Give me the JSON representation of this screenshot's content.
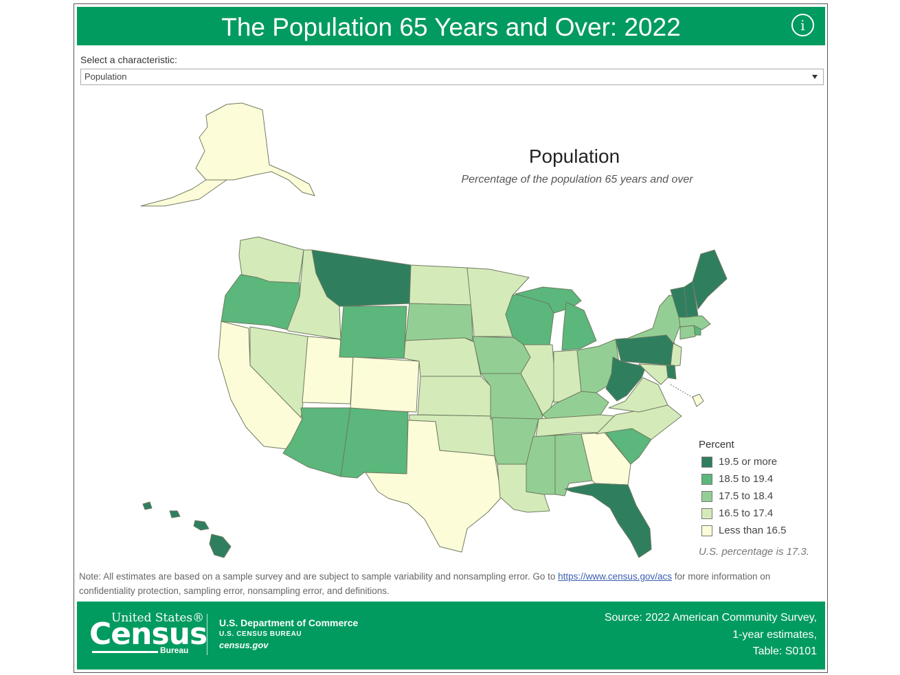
{
  "header": {
    "title": "The Population 65 Years and Over: 2022",
    "info_icon": "info-icon"
  },
  "selector": {
    "label": "Select a characteristic:",
    "value": "Population"
  },
  "map": {
    "title": "Population",
    "subtitle": "Percentage of the population 65 years and over",
    "state_classes": {
      "AK": 0,
      "HI": 4,
      "WA": 1,
      "OR": 3,
      "CA": 0,
      "ID": 1,
      "NV": 1,
      "UT": 0,
      "AZ": 3,
      "MT": 4,
      "WY": 3,
      "CO": 0,
      "NM": 3,
      "ND": 1,
      "SD": 2,
      "NE": 1,
      "KS": 1,
      "OK": 1,
      "TX": 0,
      "MN": 1,
      "IA": 2,
      "MO": 2,
      "AR": 2,
      "LA": 1,
      "WI": 3,
      "IL": 1,
      "MI": 3,
      "IN": 1,
      "OH": 2,
      "KY": 2,
      "TN": 1,
      "MS": 2,
      "AL": 2,
      "GA": 0,
      "FL": 4,
      "SC": 3,
      "NC": 1,
      "VA": 1,
      "WV": 4,
      "PA": 4,
      "NY": 2,
      "NJ": 1,
      "DE": 4,
      "MD": 1,
      "DC": 0,
      "CT": 2,
      "RI": 3,
      "MA": 2,
      "VT": 4,
      "NH": 4,
      "ME": 4
    }
  },
  "legend": {
    "title": "Percent",
    "items": [
      {
        "label": "19.5 or more",
        "color": "#2f7f5f"
      },
      {
        "label": "18.5 to 19.4",
        "color": "#5bb77b"
      },
      {
        "label": "17.5 to 18.4",
        "color": "#93cf94"
      },
      {
        "label": "16.5 to 17.4",
        "color": "#d4ebb9"
      },
      {
        "label": "Less than 16.5",
        "color": "#fdfcd9"
      }
    ],
    "us_note": "U.S. percentage is 17.3."
  },
  "note": {
    "prefix": "Note: All estimates are based on a sample survey and are subject to sample variability and nonsampling error. Go to",
    "link": "https://www.census.gov/acs",
    "suffix": "for more information on confidentiality protection, sampling error, nonsampling error, and definitions."
  },
  "footer": {
    "logo_united_states": "United States®",
    "logo_census": "Census",
    "logo_bureau": "Bureau",
    "department": "U.S. Department of Commerce",
    "bureau": "U.S. CENSUS BUREAU",
    "website": "census.gov",
    "source_line1": "Source: 2022 American Community Survey,",
    "source_line2": "1-year estimates,",
    "source_line3": "Table: S0101"
  }
}
